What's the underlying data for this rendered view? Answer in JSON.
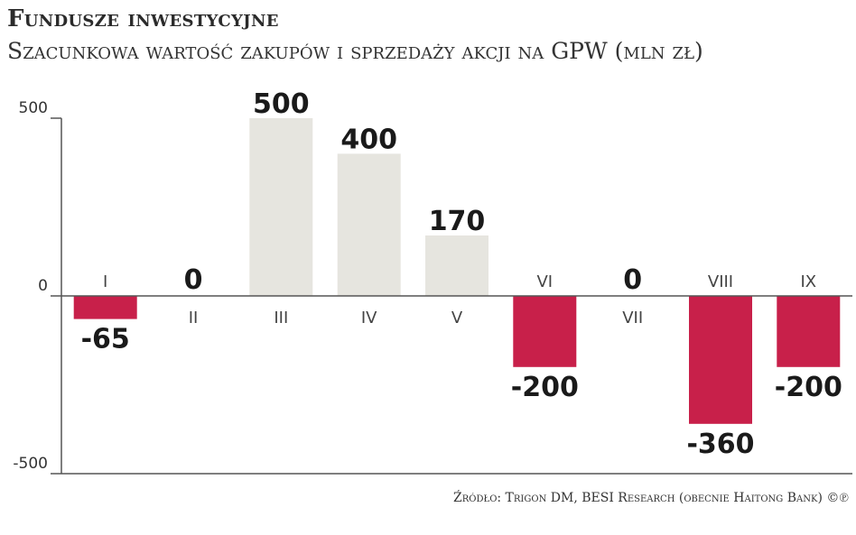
{
  "title": "Fundusze inwestycyjne",
  "subtitle": "Szacunkowa wartość zakupów i sprzedaży akcji na GPW (mln zł)",
  "source": "Źródło: Trigon DM, BESI Research (obecnie Haitong Bank) ©℗",
  "chart_data": {
    "type": "bar",
    "categories": [
      "I",
      "II",
      "III",
      "IV",
      "V",
      "VI",
      "VII",
      "VIII",
      "IX"
    ],
    "values": [
      -65,
      0,
      500,
      400,
      170,
      -200,
      0,
      -360,
      -200
    ],
    "data_labels": [
      "-65",
      "0",
      "500",
      "400",
      "170",
      "-200",
      "0",
      "-360",
      "-200"
    ],
    "y_ticks": [
      500,
      0,
      -500
    ],
    "y_tick_labels": [
      "500",
      "0",
      "-500"
    ],
    "ylim": [
      -500,
      500
    ],
    "grid": false,
    "colors": {
      "positive": "#e6e5df",
      "negative": "#c8204a",
      "axis": "#555555"
    }
  }
}
